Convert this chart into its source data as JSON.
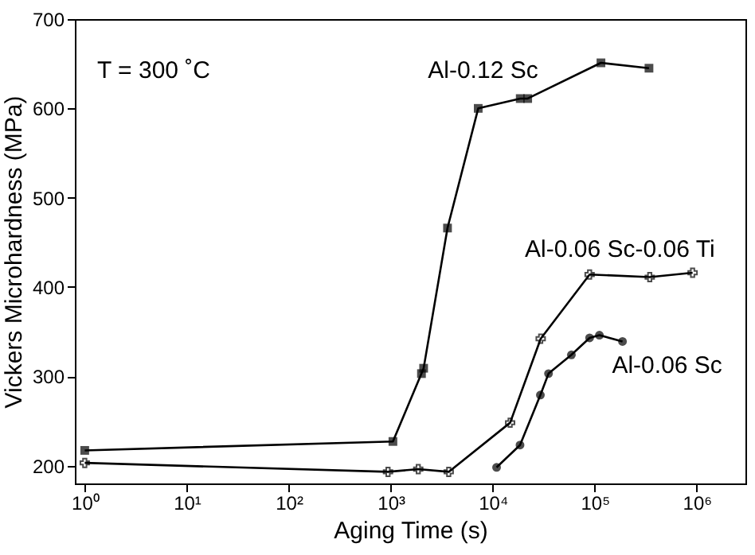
{
  "chart_data": {
    "type": "line",
    "xlabel": "Aging Time (s)",
    "ylabel": "Vickers Microhardness (MPa)",
    "log": "x",
    "grid": false,
    "line_style": "solid",
    "xlim": [
      0.8,
      3000000
    ],
    "ylim": [
      180,
      700
    ],
    "xticks": [
      {
        "value": 1,
        "label": "10⁰"
      },
      {
        "value": 10,
        "label": "10¹"
      },
      {
        "value": 100,
        "label": "10²"
      },
      {
        "value": 1000,
        "label": "10³"
      },
      {
        "value": 10000,
        "label": "10⁴"
      },
      {
        "value": 100000,
        "label": "10⁵"
      },
      {
        "value": 1000000,
        "label": "10⁶"
      }
    ],
    "yticks": [
      200,
      300,
      400,
      500,
      600,
      700
    ],
    "annotations": [
      "T = 300 ˚C"
    ],
    "series": [
      {
        "name": "Al-0.12 Sc",
        "color": "#000000",
        "marker": "square",
        "x": [
          1,
          1050,
          2000,
          2100,
          3600,
          7200,
          18600,
          22000,
          115000,
          340000
        ],
        "values": [
          217,
          227,
          303,
          309,
          466,
          600,
          611,
          611,
          651,
          645
        ]
      },
      {
        "name": "Al-0.06 Sc-0.06 Ti",
        "color": "#000000",
        "marker": "cross",
        "x": [
          1,
          940,
          1860,
          3700,
          14800,
          29500,
          89000,
          346000,
          910000
        ],
        "values": [
          203,
          193,
          196,
          193,
          248,
          342,
          414,
          411,
          416
        ]
      },
      {
        "name": "Al-0.06 Sc",
        "color": "#000000",
        "marker": "circle",
        "x": [
          10900,
          18500,
          29300,
          35200,
          59000,
          89000,
          111000,
          187000
        ],
        "values": [
          198,
          223,
          279,
          303,
          324,
          343,
          346,
          339
        ]
      }
    ]
  }
}
